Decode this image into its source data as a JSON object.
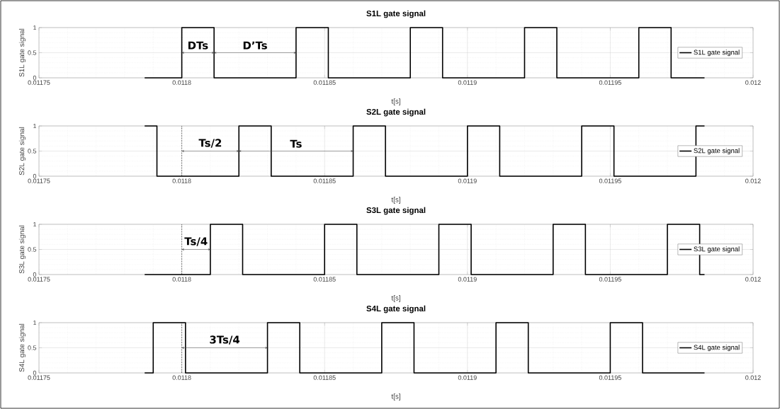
{
  "chart_data": [
    {
      "type": "step",
      "title": "S1L gate signal",
      "xlabel": "t[s]",
      "ylabel": "S1L gate signal",
      "xlim": [
        0.01175,
        0.012
      ],
      "ylim": [
        0,
        1
      ],
      "xticks": [
        0.01175,
        0.0118,
        0.01185,
        0.0119,
        0.01195,
        0.012
      ],
      "yticks": [
        0,
        0.5,
        1
      ],
      "grid": true,
      "legend": "right",
      "series": [
        {
          "name": "S1L gate signal",
          "color": "#000000",
          "x": [
            0.011787,
            0.0118,
            0.0118113,
            0.01184,
            0.0118513,
            0.01188,
            0.0118913,
            0.01192,
            0.0119313,
            0.01196,
            0.0119713,
            0.011983
          ],
          "values": [
            0,
            1,
            0,
            1,
            0,
            1,
            0,
            1,
            0,
            1,
            0,
            0
          ]
        }
      ],
      "ref_lines": [
        {
          "axis": "x",
          "value": 0.0118,
          "color": "#000000",
          "line_style": "dashed"
        }
      ],
      "annotations": [
        {
          "text": "DTs",
          "x": 0.0118113,
          "y": 0.5
        },
        {
          "text": "D’Ts",
          "x": 0.01184,
          "y": 0.5
        }
      ]
    },
    {
      "type": "step",
      "title": "S2L gate signal",
      "xlabel": "t[s]",
      "ylabel": "S2L gate signal",
      "xlim": [
        0.01175,
        0.012
      ],
      "ylim": [
        0,
        1
      ],
      "xticks": [
        0.01175,
        0.0118,
        0.01185,
        0.0119,
        0.01195,
        0.012
      ],
      "yticks": [
        0,
        0.5,
        1
      ],
      "grid": true,
      "legend": "right",
      "series": [
        {
          "name": "S2L gate signal",
          "color": "#000000",
          "x": [
            0.011787,
            0.0117913,
            0.01182,
            0.0118313,
            0.01186,
            0.0118713,
            0.0119,
            0.0119113,
            0.01194,
            0.0119513,
            0.01198,
            0.011983
          ],
          "values": [
            1,
            0,
            1,
            0,
            1,
            0,
            1,
            0,
            1,
            0,
            1,
            1
          ]
        }
      ],
      "ref_lines": [
        {
          "axis": "x",
          "value": 0.0118,
          "color": "#000000",
          "line_style": "dashed"
        }
      ],
      "annotations": [
        {
          "text": "Ts/2",
          "x": 0.01182,
          "y": 0.5
        },
        "Ts"
      ]
    },
    {
      "type": "step",
      "title": "S3L gate signal",
      "xlabel": "t[s]",
      "ylabel": "S3L gate signal",
      "xlim": [
        0.01175,
        0.012
      ],
      "ylim": [
        0,
        1
      ],
      "xticks": [
        0.01175,
        0.0118,
        0.01185,
        0.0119,
        0.01195,
        0.012
      ],
      "yticks": [
        0,
        0.5,
        1
      ],
      "grid": true,
      "legend": "right",
      "series": [
        {
          "name": "S3L gate signal",
          "color": "#000000",
          "x": [
            0.011787,
            0.01181,
            0.0118213,
            0.01185,
            0.0118613,
            0.01189,
            0.0119013,
            0.01193,
            0.0119413,
            0.01197,
            0.0119813,
            0.011983
          ],
          "values": [
            0,
            1,
            0,
            1,
            0,
            1,
            0,
            1,
            0,
            1,
            0,
            0
          ]
        }
      ],
      "ref_lines": [
        {
          "axis": "x",
          "value": 0.0118,
          "color": "#000000",
          "line_style": "dashed"
        }
      ],
      "annotations": [
        {
          "text": "Ts/4",
          "x": 0.01181,
          "y": 0.5
        }
      ]
    },
    {
      "type": "step",
      "title": "S4L gate signal",
      "xlabel": "t[s]",
      "ylabel": "S4L gate signal",
      "xlim": [
        0.01175,
        0.012
      ],
      "ylim": [
        0,
        1
      ],
      "xticks": [
        0.01175,
        0.0118,
        0.01185,
        0.0119,
        0.01195,
        0.012
      ],
      "yticks": [
        0,
        0.5,
        1
      ],
      "grid": true,
      "legend": "right",
      "series": [
        {
          "name": "S4L gate signal",
          "color": "#000000",
          "x": [
            0.011787,
            0.01179,
            0.0118013,
            0.01183,
            0.0118413,
            0.01187,
            0.0118813,
            0.01191,
            0.0119213,
            0.01195,
            0.0119613,
            0.011983
          ],
          "values": [
            0,
            1,
            0,
            1,
            0,
            1,
            0,
            1,
            0,
            1,
            0,
            0
          ]
        }
      ],
      "ref_lines": [
        {
          "axis": "x",
          "value": 0.0118,
          "color": "#000000",
          "line_style": "dashed"
        }
      ],
      "annotations": [
        {
          "text": "3Ts/4",
          "x": 0.01183,
          "y": 0.5
        }
      ]
    }
  ]
}
